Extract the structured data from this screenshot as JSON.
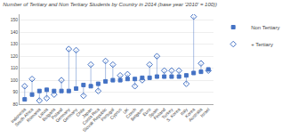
{
  "chart_data": {
    "type": "dumbbell",
    "title": "Number of Tertiary and Non Tertiary Students by Country in 2014 (base year '2010' = 100))",
    "categories": [
      "Indonesia",
      "South Africa",
      "Romania",
      "Latvia",
      "Bulgaria",
      "Poland",
      "Germany",
      "Germany",
      "Chile",
      "Japan",
      "Costa Rica",
      "Slovak Republic",
      "Portugal",
      "Cyprus",
      "UK",
      "Czech",
      "Belgium",
      "Euro",
      "Spain",
      "Finland",
      "Turkey",
      "S. Korea",
      "Italy",
      "Korea",
      "Australia",
      "Israel"
    ],
    "series": [
      {
        "name": "Non Tertiary",
        "color": "#4472c4",
        "marker": "square",
        "values": [
          84,
          88,
          91,
          92,
          91,
          91,
          91,
          93,
          96,
          95,
          97,
          99,
          100,
          100,
          101,
          101,
          102,
          102,
          103,
          103,
          103,
          103,
          104,
          106,
          107,
          109
        ]
      },
      {
        "name": "+ Tertiary",
        "color": "#4472c4",
        "marker": "diamond-open",
        "values": [
          95,
          101,
          83,
          85,
          88,
          100,
          126,
          125,
          87,
          113,
          91,
          116,
          113,
          104,
          105,
          95,
          100,
          113,
          120,
          108,
          108,
          108,
          97,
          153,
          114,
          108
        ]
      }
    ],
    "ylim": [
      80,
      155
    ],
    "yticks": [
      80,
      90,
      100,
      110,
      120,
      130,
      140,
      150
    ],
    "grid": true,
    "legend": "upper right"
  }
}
